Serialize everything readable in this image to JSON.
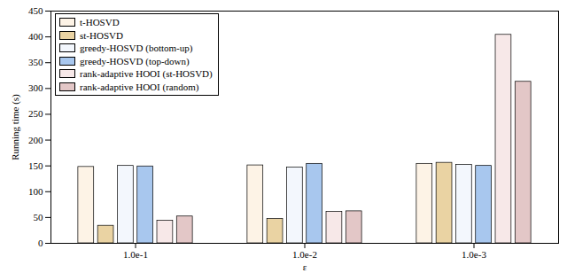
{
  "chart_data": {
    "type": "bar",
    "x_label": "ε",
    "y_label": "Running time (s)",
    "categories": [
      "1.0e-1",
      "1.0e-2",
      "1.0e-3"
    ],
    "series": [
      {
        "name": "t-HOSVD",
        "color": "#fdf3e6",
        "values": [
          148,
          151,
          154
        ]
      },
      {
        "name": "st-HOSVD",
        "color": "#ead3a3",
        "values": [
          34,
          47,
          156
        ]
      },
      {
        "name": "greedy-HOSVD (bottom-up)",
        "color": "#f3f7fd",
        "values": [
          150,
          147,
          152
        ]
      },
      {
        "name": "greedy-HOSVD (top-down)",
        "color": "#a8c7ee",
        "values": [
          149,
          154,
          150
        ]
      },
      {
        "name": "rank-adaptive HOOI (st-HOSVD)",
        "color": "#f7e8e8",
        "values": [
          44,
          61,
          404
        ]
      },
      {
        "name": "rank-adaptive HOOI (random)",
        "color": "#e3c7c7",
        "values": [
          52,
          62,
          313
        ]
      }
    ],
    "ylim": [
      0,
      450
    ],
    "yticks": [
      0,
      50,
      100,
      150,
      200,
      250,
      300,
      350,
      400,
      450
    ],
    "legend": "top-left",
    "grid": false
  }
}
